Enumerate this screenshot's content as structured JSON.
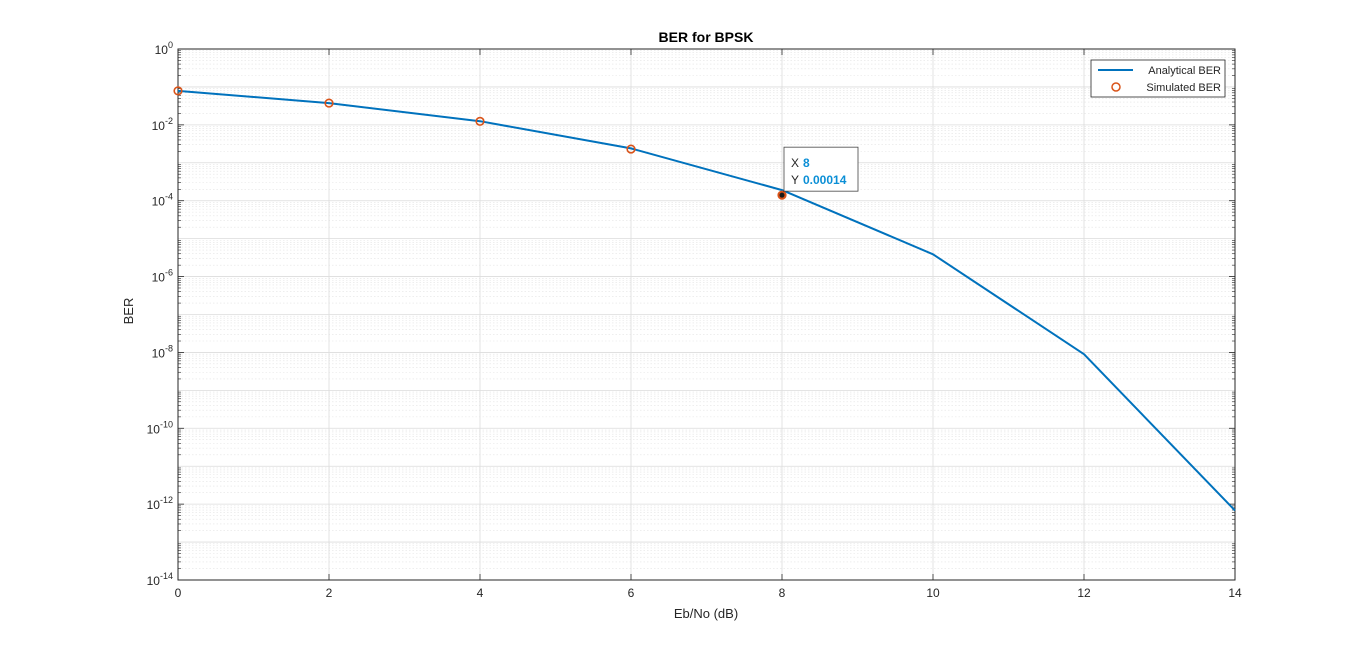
{
  "chart_data": {
    "type": "line",
    "title": "BER for BPSK",
    "xlabel": "Eb/No (dB)",
    "ylabel": "BER",
    "xlim": [
      0,
      14
    ],
    "ylim": [
      1e-14,
      1
    ],
    "yscale": "log",
    "grid": true,
    "minor_grid": true,
    "legend_position": "top-right",
    "x_ticks": [
      0,
      2,
      4,
      6,
      8,
      10,
      12,
      14
    ],
    "y_tick_exponents": [
      0,
      -2,
      -4,
      -6,
      -8,
      -10,
      -12,
      -14
    ],
    "y_tick_base": "10",
    "series": [
      {
        "name": "Analytical BER",
        "style": "line",
        "color": "#0072BD",
        "x": [
          0,
          2,
          4,
          6,
          8,
          10,
          12,
          14
        ],
        "values": [
          0.0786,
          0.0375,
          0.0125,
          0.0024,
          0.000191,
          3.87e-06,
          9e-09,
          6.8e-13
        ]
      },
      {
        "name": "Simulated BER",
        "style": "marker-circle",
        "color": "#D95319",
        "x": [
          0,
          2,
          4,
          6,
          8
        ],
        "values": [
          0.0786,
          0.0375,
          0.0124,
          0.0023,
          0.00014
        ]
      }
    ],
    "datatip": {
      "x_label": "X",
      "x_value": "8",
      "y_label": "Y",
      "y_value": "0.00014",
      "x": 8,
      "y": 0.00014
    }
  }
}
